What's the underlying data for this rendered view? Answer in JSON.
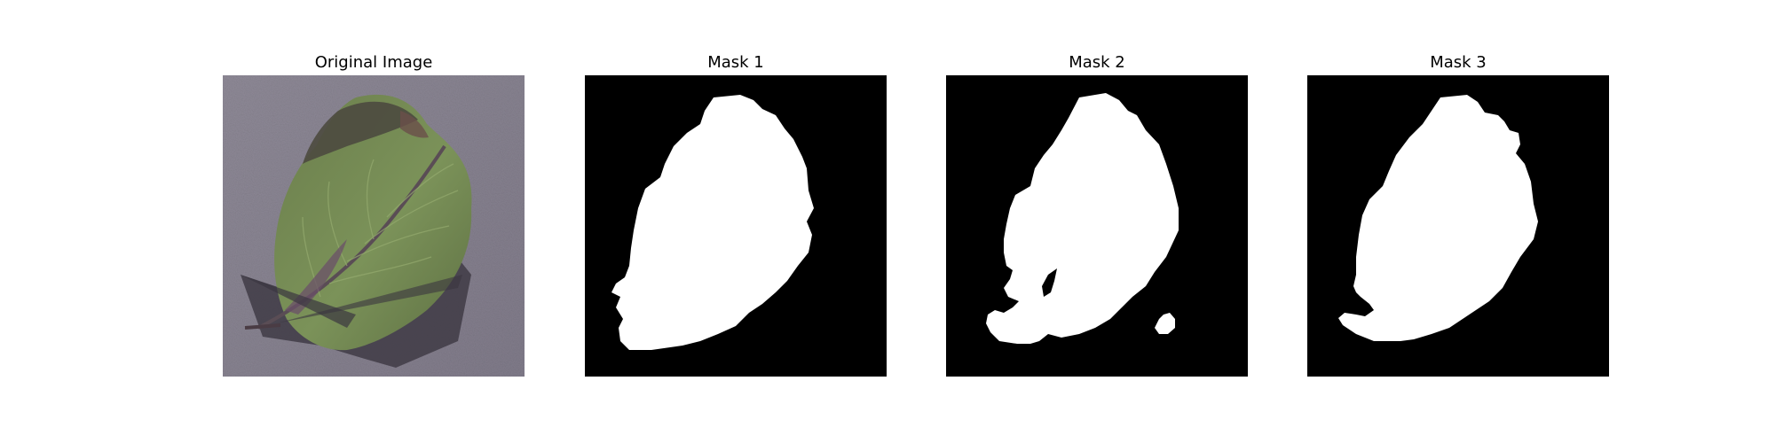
{
  "panels": [
    {
      "title": "Original Image"
    },
    {
      "title": "Mask 1"
    },
    {
      "title": "Mask 2"
    },
    {
      "title": "Mask 3"
    }
  ],
  "colors": {
    "mask_background": "#000000",
    "mask_foreground": "#ffffff",
    "photo_background": "#8a8592",
    "leaf_green": "#6f8450",
    "leaf_dark": "#4b4f3a",
    "leaf_shadow": "#3f3b44"
  }
}
